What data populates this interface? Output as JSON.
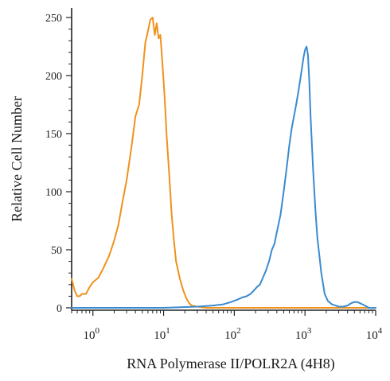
{
  "chart_data": {
    "type": "line",
    "xlabel": "RNA Polymerase II/POLR2A (4H8)",
    "ylabel": "Relative Cell Number",
    "x_scale": "log",
    "xlim": [
      0.5,
      10000
    ],
    "ylim": [
      0,
      260
    ],
    "x_ticks": [
      {
        "value": 1,
        "base": "10",
        "exp": "0"
      },
      {
        "value": 10,
        "base": "10",
        "exp": "1"
      },
      {
        "value": 100,
        "base": "10",
        "exp": "2"
      },
      {
        "value": 1000,
        "base": "10",
        "exp": "3"
      },
      {
        "value": 10000,
        "base": "10",
        "exp": "4"
      }
    ],
    "y_ticks": [
      {
        "value": 0,
        "label": "0"
      },
      {
        "value": 50,
        "label": "50"
      },
      {
        "value": 100,
        "label": "100"
      },
      {
        "value": 150,
        "label": "150"
      },
      {
        "value": 200,
        "label": "200"
      },
      {
        "value": 250,
        "label": "250"
      }
    ],
    "series": [
      {
        "color": "#f0921c",
        "x": [
          0.5,
          0.55,
          0.6,
          0.65,
          0.7,
          0.8,
          0.9,
          1.0,
          1.2,
          1.4,
          1.7,
          2.0,
          2.3,
          2.6,
          3.0,
          3.5,
          4.0,
          4.5,
          5.0,
          5.5,
          6.0,
          6.5,
          7.0,
          7.5,
          8.0,
          8.5,
          9.0,
          9.5,
          10.0,
          10.5,
          11.0,
          12.0,
          13.0,
          14.0,
          15.0,
          17.0,
          19.0,
          21.0,
          23.0,
          25.0,
          30.0,
          40.0,
          60.0,
          100.0,
          1000.0,
          10000.0
        ],
        "y": [
          25,
          15,
          10,
          10,
          12,
          12,
          18,
          22,
          26,
          34,
          45,
          58,
          72,
          90,
          110,
          138,
          165,
          175,
          200,
          228,
          238,
          248,
          250,
          235,
          245,
          232,
          235,
          215,
          195,
          175,
          150,
          115,
          80,
          58,
          40,
          25,
          15,
          8,
          4,
          2,
          1,
          0,
          0,
          0,
          0,
          0
        ]
      },
      {
        "color": "#3a8ad1",
        "x": [
          0.5,
          10,
          30,
          50,
          70,
          90,
          110,
          130,
          150,
          170,
          190,
          210,
          230,
          250,
          280,
          310,
          340,
          370,
          400,
          450,
          500,
          550,
          600,
          650,
          700,
          750,
          800,
          850,
          900,
          950,
          1000,
          1050,
          1100,
          1150,
          1200,
          1300,
          1400,
          1500,
          1700,
          1900,
          2100,
          2400,
          2700,
          3000,
          3500,
          4000,
          4500,
          5000,
          5500,
          6000,
          6500,
          7000,
          7500,
          8000,
          10000
        ],
        "y": [
          0,
          0,
          1,
          2,
          3,
          5,
          7,
          9,
          10,
          12,
          15,
          18,
          20,
          25,
          32,
          40,
          50,
          55,
          65,
          80,
          100,
          120,
          140,
          155,
          165,
          175,
          185,
          195,
          205,
          215,
          222,
          225,
          218,
          195,
          165,
          120,
          85,
          60,
          30,
          12,
          6,
          3,
          2,
          1,
          1,
          2,
          4,
          5,
          5,
          4,
          3,
          2,
          1,
          0,
          0
        ]
      }
    ]
  }
}
